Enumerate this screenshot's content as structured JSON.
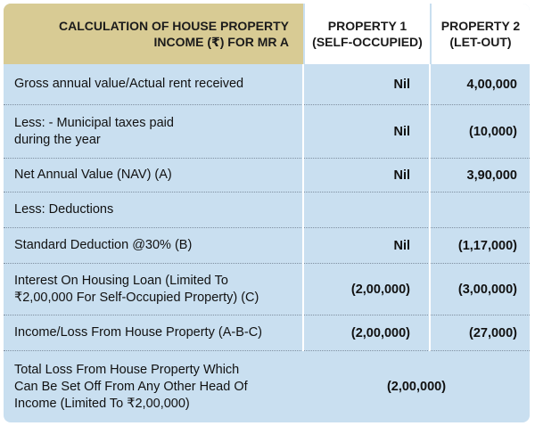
{
  "header": {
    "title": "CALCULATION OF HOUSE PROPERTY\nINCOME (₹) FOR MR A",
    "col1": "PROPERTY 1\n(SELF-OCCUPIED)",
    "col2": "PROPERTY 2\n(LET-OUT)"
  },
  "rows": [
    {
      "label": "Gross annual value/Actual rent received",
      "p1": "Nil",
      "p2": "4,00,000"
    },
    {
      "label": "Less: - Municipal taxes paid\nduring the year",
      "p1": "Nil",
      "p2": "(10,000)"
    },
    {
      "label": "Net Annual Value (NAV) (A)",
      "p1": "Nil",
      "p2": "3,90,000"
    },
    {
      "label": "Less: Deductions",
      "p1": "",
      "p2": ""
    },
    {
      "label": "Standard Deduction @30% (B)",
      "p1": "Nil",
      "p2": "(1,17,000)"
    },
    {
      "label": "Interest On Housing Loan (Limited To\n₹2,00,000 For Self-Occupied Property) (C)",
      "p1": "(2,00,000)",
      "p2": "(3,00,000)"
    },
    {
      "label": "Income/Loss From House Property (A-B-C)",
      "p1": "(2,00,000)",
      "p2": "(27,000)"
    }
  ],
  "total": {
    "label": "Total Loss From House Property Which\nCan Be Set Off From Any Other Head Of\nIncome (Limited To ₹2,00,000)",
    "value": "(2,00,000)"
  },
  "colors": {
    "header_bg": "#d8cb94",
    "body_bg": "#c9dff0"
  }
}
